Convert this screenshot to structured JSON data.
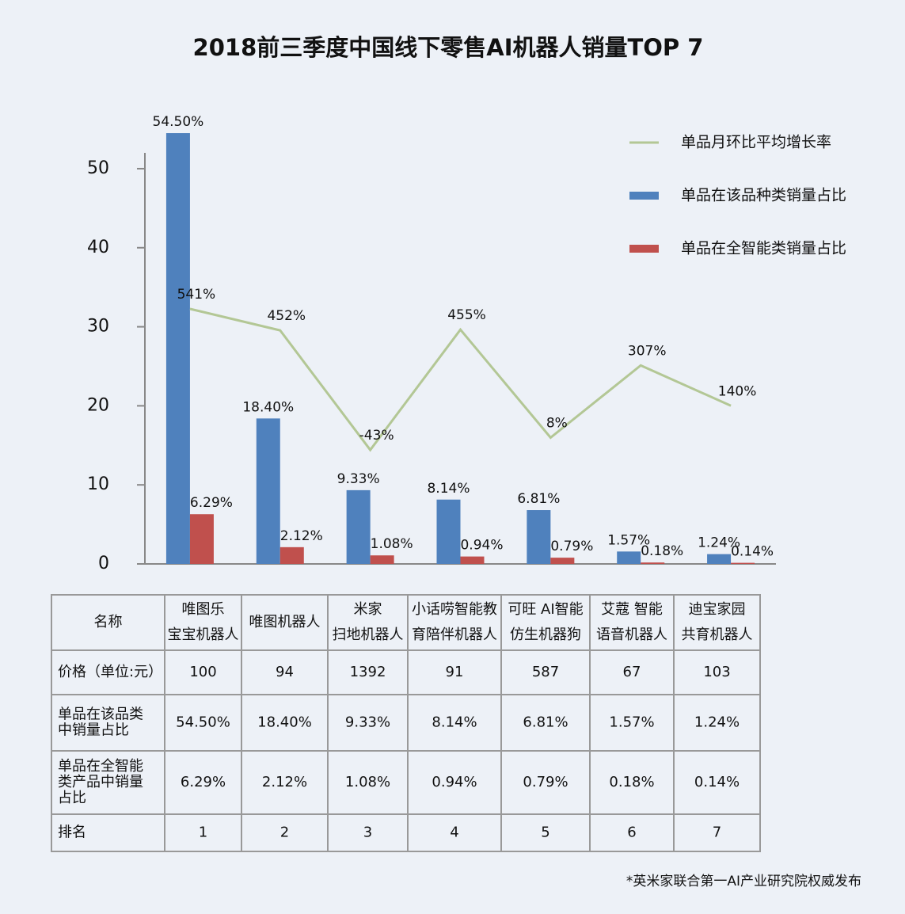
{
  "chart_data": {
    "type": "bar_line",
    "title": "2018前三季度中国线下零售AI机器人销量TOP 7",
    "series": [
      {
        "name": "单品在该品种类销量占比",
        "color": "#4f81bd",
        "values": [
          54.5,
          18.4,
          9.33,
          8.14,
          6.81,
          1.57,
          1.24
        ],
        "value_labels": [
          "54.50%",
          "18.40%",
          "9.33%",
          "8.14%",
          "6.81%",
          "1.57%",
          "1.24%"
        ]
      },
      {
        "name": "单品在全智能类销量占比",
        "color": "#c0504d",
        "values": [
          6.29,
          2.12,
          1.08,
          0.94,
          0.79,
          0.18,
          0.14
        ],
        "value_labels": [
          "6.29%",
          "2.12%",
          "1.08%",
          "0.94%",
          "0.79%",
          "0.18%",
          "0.14%"
        ]
      },
      {
        "name": "单品月环比平均增长率",
        "color": "#b3c795",
        "axis": "y2",
        "values": [
          541,
          452,
          -43,
          455,
          8,
          307,
          140
        ],
        "value_labels": [
          "541%",
          "452%",
          "-43%",
          "455%",
          "8%",
          "307%",
          "140%"
        ]
      }
    ],
    "ylim": [
      0,
      52
    ],
    "yticks": [
      0,
      10,
      20,
      30,
      40,
      50
    ],
    "y2lim": [
      -515,
      1187
    ],
    "legend": "top-right"
  },
  "table": {
    "header": [
      "名称",
      [
        "唯图乐",
        "宝宝机器人"
      ],
      "唯图机器人",
      [
        "米家",
        "扫地机器人"
      ],
      [
        "小话唠智能教",
        "育陪伴机器人"
      ],
      [
        "可旺 AI智能",
        "仿生机器狗"
      ],
      [
        "艾蔻 智能",
        "语音机器人"
      ],
      [
        "迪宝家园",
        "共育机器人"
      ]
    ],
    "rows": [
      [
        "价格（单位:元）",
        100,
        94,
        1392,
        91,
        587,
        67,
        103
      ],
      [
        [
          "单品在该品类",
          "中销量占比"
        ],
        "54.50%",
        "18.40%",
        "9.33%",
        "8.14%",
        "6.81%",
        "1.57%",
        "1.24%"
      ],
      [
        [
          "单品在全智能",
          "类产品中销量",
          "占比"
        ],
        "6.29%",
        "2.12%",
        "1.08%",
        "0.94%",
        "0.79%",
        "0.18%",
        "0.14%"
      ],
      [
        "排名",
        1,
        2,
        3,
        4,
        5,
        6,
        7
      ]
    ]
  },
  "footnote": "*英米家联合第一AI产业研究院权威发布"
}
